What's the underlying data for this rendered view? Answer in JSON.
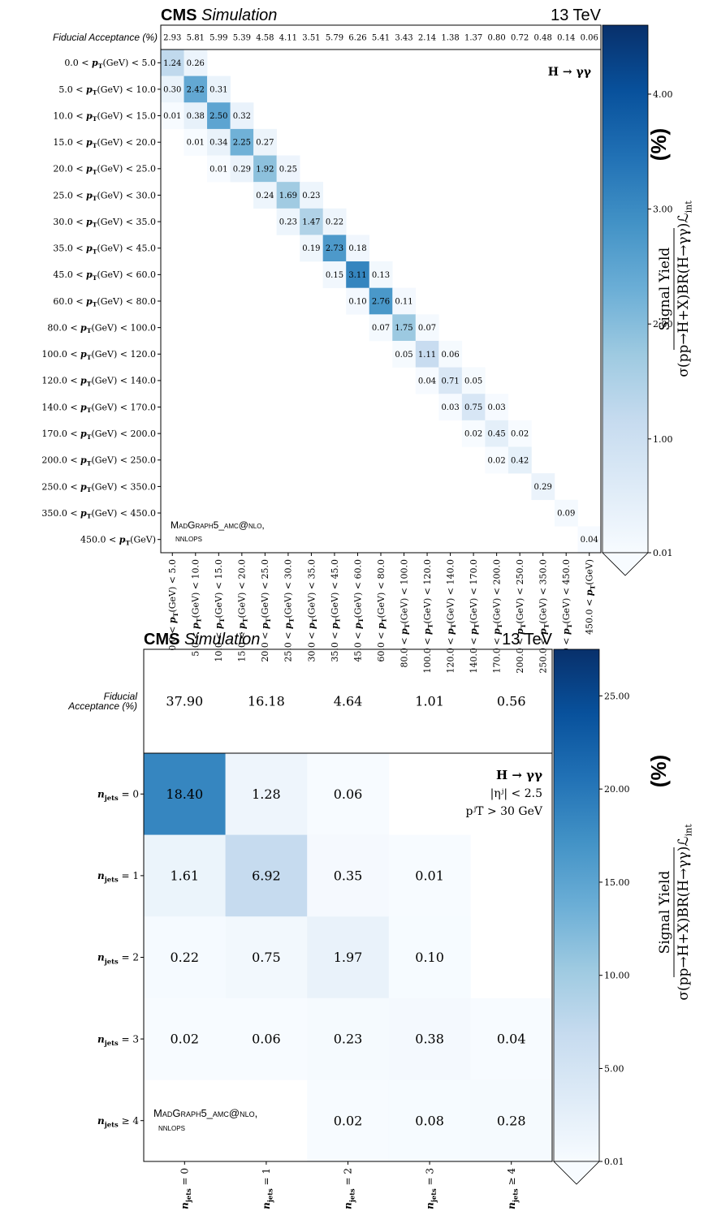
{
  "colormap": {
    "stops": [
      "#f7fbff",
      "#deebf7",
      "#c6dbef",
      "#9ecae1",
      "#6baed6",
      "#4292c6",
      "#2171b5",
      "#08519c",
      "#08306b"
    ]
  },
  "chart_data": [
    {
      "type": "heatmap",
      "header": {
        "experiment": "CMS",
        "label": "Simulation",
        "energy": "13 TeV"
      },
      "annotation": "H → γγ",
      "generator": [
        "MadGraph5_amc@nlo,",
        "nnlops"
      ],
      "acceptance_label": "Fiducial Acceptance (%)",
      "colorbar_label": [
        "Signal Yield",
        "σ(pp→H+X)BR(H→γγ)ℒ"
      ],
      "colorbar_unit": "(%)",
      "colorbar_ticks": [
        "0.01",
        "1.00",
        "2.00",
        "3.00",
        "4.00"
      ],
      "zmin": 0.01,
      "zmax": 4.6,
      "ylabels": [
        "0.0 < pT(GeV) < 5.0",
        "5.0 < pT(GeV) < 10.0",
        "10.0 < pT(GeV) < 15.0",
        "15.0 < pT(GeV) < 20.0",
        "20.0 < pT(GeV) < 25.0",
        "25.0 < pT(GeV) < 30.0",
        "30.0 < pT(GeV) < 35.0",
        "35.0 < pT(GeV) < 45.0",
        "45.0 < pT(GeV) < 60.0",
        "60.0 < pT(GeV) < 80.0",
        "80.0 < pT(GeV) < 100.0",
        "100.0 < pT(GeV) < 120.0",
        "120.0 < pT(GeV) < 140.0",
        "140.0 < pT(GeV) < 170.0",
        "170.0 < pT(GeV) < 200.0",
        "200.0 < pT(GeV) < 250.0",
        "250.0 < pT(GeV) < 350.0",
        "350.0 < pT(GeV) < 450.0",
        "450.0 < pT(GeV)"
      ],
      "xlabels": [
        "0.0 < pT(GeV) < 5.0",
        "5.0 < pT(GeV) < 10.0",
        "10.0 < pT(GeV) < 15.0",
        "15.0 < pT(GeV) < 20.0",
        "20.0 < pT(GeV) < 25.0",
        "25.0 < pT(GeV) < 30.0",
        "30.0 < pT(GeV) < 35.0",
        "35.0 < pT(GeV) < 45.0",
        "45.0 < pT(GeV) < 60.0",
        "60.0 < pT(GeV) < 80.0",
        "80.0 < pT(GeV) < 100.0",
        "100.0 < pT(GeV) < 120.0",
        "120.0 < pT(GeV) < 140.0",
        "140.0 < pT(GeV) < 170.0",
        "170.0 < pT(GeV) < 200.0",
        "200.0 < pT(GeV) < 250.0",
        "250.0 < pT(GeV) < 350.0",
        "350.0 < pT(GeV) < 450.0",
        "450.0 < pT(GeV)"
      ],
      "acceptance": [
        "2.93",
        "5.81",
        "5.99",
        "5.39",
        "4.58",
        "4.11",
        "3.51",
        "5.79",
        "6.26",
        "5.41",
        "3.43",
        "2.14",
        "1.38",
        "1.37",
        "0.80",
        "0.72",
        "0.48",
        "0.14",
        "0.06"
      ],
      "cells": [
        [
          0,
          0,
          "1.24"
        ],
        [
          0,
          1,
          "0.26"
        ],
        [
          1,
          0,
          "0.30"
        ],
        [
          1,
          1,
          "2.42"
        ],
        [
          1,
          2,
          "0.31"
        ],
        [
          2,
          0,
          "0.01"
        ],
        [
          2,
          1,
          "0.38"
        ],
        [
          2,
          2,
          "2.50"
        ],
        [
          2,
          3,
          "0.32"
        ],
        [
          3,
          1,
          "0.01"
        ],
        [
          3,
          2,
          "0.34"
        ],
        [
          3,
          3,
          "2.25"
        ],
        [
          3,
          4,
          "0.27"
        ],
        [
          4,
          2,
          "0.01"
        ],
        [
          4,
          3,
          "0.29"
        ],
        [
          4,
          4,
          "1.92"
        ],
        [
          4,
          5,
          "0.25"
        ],
        [
          5,
          4,
          "0.24"
        ],
        [
          5,
          5,
          "1.69"
        ],
        [
          5,
          6,
          "0.23"
        ],
        [
          6,
          5,
          "0.23"
        ],
        [
          6,
          6,
          "1.47"
        ],
        [
          6,
          7,
          "0.22"
        ],
        [
          7,
          6,
          "0.19"
        ],
        [
          7,
          7,
          "2.73"
        ],
        [
          7,
          8,
          "0.18"
        ],
        [
          8,
          7,
          "0.15"
        ],
        [
          8,
          8,
          "3.11"
        ],
        [
          8,
          9,
          "0.13"
        ],
        [
          9,
          8,
          "0.10"
        ],
        [
          9,
          9,
          "2.76"
        ],
        [
          9,
          10,
          "0.11"
        ],
        [
          10,
          9,
          "0.07"
        ],
        [
          10,
          10,
          "1.75"
        ],
        [
          10,
          11,
          "0.07"
        ],
        [
          11,
          10,
          "0.05"
        ],
        [
          11,
          11,
          "1.11"
        ],
        [
          11,
          12,
          "0.06"
        ],
        [
          12,
          11,
          "0.04"
        ],
        [
          12,
          12,
          "0.71"
        ],
        [
          12,
          13,
          "0.05"
        ],
        [
          13,
          12,
          "0.03"
        ],
        [
          13,
          13,
          "0.75"
        ],
        [
          13,
          14,
          "0.03"
        ],
        [
          14,
          13,
          "0.02"
        ],
        [
          14,
          14,
          "0.45"
        ],
        [
          14,
          15,
          "0.02"
        ],
        [
          15,
          14,
          "0.02"
        ],
        [
          15,
          15,
          "0.42"
        ],
        [
          16,
          16,
          "0.29"
        ],
        [
          17,
          17,
          "0.09"
        ],
        [
          18,
          18,
          "0.04"
        ]
      ]
    },
    {
      "type": "heatmap",
      "header": {
        "experiment": "CMS",
        "label": "Simulation",
        "energy": "13 TeV"
      },
      "annotation": "H → γγ",
      "cuts": [
        "|ηʲ| < 2.5",
        "pʲT > 30 GeV"
      ],
      "generator": [
        "MadGraph5_amc@nlo,",
        "nnlops"
      ],
      "acceptance_label": [
        "Fiducial",
        "Acceptance (%)"
      ],
      "colorbar_label": [
        "Signal Yield",
        "σ(pp→H+X)BR(H→γγ)ℒ"
      ],
      "colorbar_unit": "(%)",
      "colorbar_ticks": [
        "0.01",
        "5.00",
        "10.00",
        "15.00",
        "20.00",
        "25.00"
      ],
      "zmin": 0.01,
      "zmax": 27.5,
      "ylabels": [
        "n_jets = 0",
        "n_jets = 1",
        "n_jets = 2",
        "n_jets = 3",
        "n_jets ≥ 4"
      ],
      "xlabels": [
        "n_jets = 0",
        "n_jets = 1",
        "n_jets = 2",
        "n_jets = 3",
        "n_jets ≥ 4"
      ],
      "acceptance": [
        "37.90",
        "16.18",
        "4.64",
        "1.01",
        "0.56"
      ],
      "cells": [
        [
          0,
          0,
          "18.40"
        ],
        [
          0,
          1,
          "1.28"
        ],
        [
          0,
          2,
          "0.06"
        ],
        [
          1,
          0,
          "1.61"
        ],
        [
          1,
          1,
          "6.92"
        ],
        [
          1,
          2,
          "0.35"
        ],
        [
          1,
          3,
          "0.01"
        ],
        [
          2,
          0,
          "0.22"
        ],
        [
          2,
          1,
          "0.75"
        ],
        [
          2,
          2,
          "1.97"
        ],
        [
          2,
          3,
          "0.10"
        ],
        [
          3,
          0,
          "0.02"
        ],
        [
          3,
          1,
          "0.06"
        ],
        [
          3,
          2,
          "0.23"
        ],
        [
          3,
          3,
          "0.38"
        ],
        [
          3,
          4,
          "0.04"
        ],
        [
          4,
          2,
          "0.02"
        ],
        [
          4,
          3,
          "0.08"
        ],
        [
          4,
          4,
          "0.28"
        ]
      ]
    }
  ]
}
